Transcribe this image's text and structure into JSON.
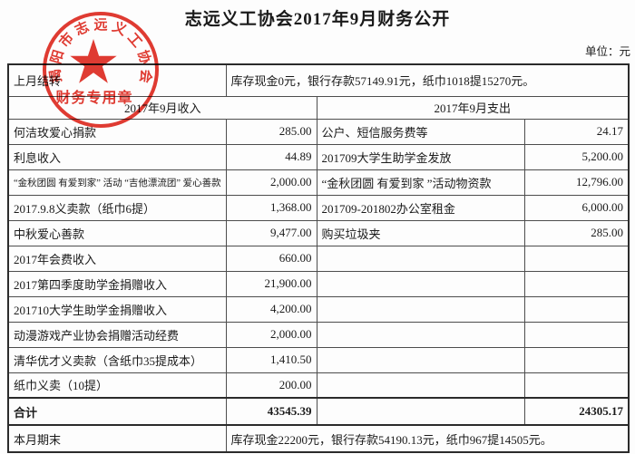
{
  "title": "志远义工协会2017年9月财务公开",
  "unit_label": "单位：元",
  "stamp": {
    "arc_text": "揭阳市志远义工协会",
    "bottom_text": "财务专用章",
    "color": "#df2a20"
  },
  "table": {
    "prev_month": {
      "label": "上月结转",
      "content": "库存现金0元，银行存款57149.91元，纸巾1018提15270元。"
    },
    "income_header": "2017年9月收入",
    "expense_header": "2017年9月支出",
    "rows": [
      {
        "income_item": "何洁玫爱心捐款",
        "income_amount": "285.00",
        "expense_item": "公户、短信服务费等",
        "expense_amount": "24.17"
      },
      {
        "income_item": "利息收入",
        "income_amount": "44.89",
        "expense_item": "201709大学生助学金发放",
        "expense_amount": "5,200.00"
      },
      {
        "income_item": "“金秋团圆 有爱到家” 活动 “吉他漂流团” 爱心善款",
        "income_amount": "2,000.00",
        "expense_item": "“金秋团圆 有爱到家 ”活动物资款",
        "expense_amount": "12,796.00"
      },
      {
        "income_item": "2017.9.8义卖款（纸巾6提）",
        "income_amount": "1,368.00",
        "expense_item": "201709-201802办公室租金",
        "expense_amount": "6,000.00"
      },
      {
        "income_item": "中秋爱心善款",
        "income_amount": "9,477.00",
        "expense_item": "购买垃圾夹",
        "expense_amount": "285.00"
      },
      {
        "income_item": "2017年会费收入",
        "income_amount": "660.00",
        "expense_item": "",
        "expense_amount": ""
      },
      {
        "income_item": "2017第四季度助学金捐赠收入",
        "income_amount": "21,900.00",
        "expense_item": "",
        "expense_amount": ""
      },
      {
        "income_item": "201710大学生助学金捐赠收入",
        "income_amount": "4,200.00",
        "expense_item": "",
        "expense_amount": ""
      },
      {
        "income_item": "动漫游戏产业协会捐赠活动经费",
        "income_amount": "2,000.00",
        "expense_item": "",
        "expense_amount": ""
      },
      {
        "income_item": "清华优才义卖款（含纸巾35提成本）",
        "income_amount": "1,410.50",
        "expense_item": "",
        "expense_amount": ""
      },
      {
        "income_item": "纸巾义卖（10提）",
        "income_amount": "200.00",
        "expense_item": "",
        "expense_amount": ""
      }
    ],
    "total": {
      "label": "合计",
      "income_total": "43545.39",
      "expense_total": "24305.17"
    },
    "month_end": {
      "label": "本月期末",
      "content": "库存现金22200元，银行存款54190.13元，纸巾967提14505元。"
    }
  }
}
